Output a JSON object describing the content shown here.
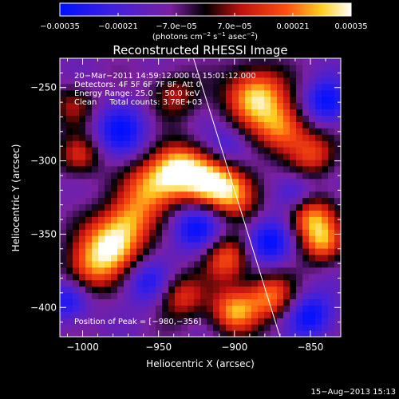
{
  "chart_data": {
    "type": "heatmap",
    "title": "Reconstructed RHESSI Image",
    "xlabel": "Heliocentric X (arcsec)",
    "ylabel": "Heliocentric Y (arcsec)",
    "xlim": [
      -1015,
      -830
    ],
    "ylim": [
      -420,
      -230
    ],
    "xticks": [
      -1000,
      -950,
      -900,
      -850
    ],
    "xtick_labels": [
      "−1000",
      "−950",
      "−900",
      "−850"
    ],
    "yticks": [
      -250,
      -300,
      -350,
      -400
    ],
    "ytick_labels": [
      "−250",
      "−300",
      "−350",
      "−400"
    ],
    "colorbar": {
      "range": [
        -0.00035,
        0.00035
      ],
      "tick_values": [
        -0.00035,
        -0.00021,
        -7e-05,
        7e-05,
        0.00021,
        0.00035
      ],
      "tick_labels": [
        "−0.00035",
        "−0.00021",
        "−7.0e−05",
        "7.0e−05",
        "0.00021",
        "0.00035"
      ],
      "units_prefix": "(photons cm",
      "units_sup1": "−2",
      "units_mid": " s",
      "units_sup2": "−1",
      "units_mid2": " asec",
      "units_sup3": "−2",
      "units_suffix": ")",
      "colormap": "rainbow-blue-red-yellow-white"
    },
    "info_lines": [
      "20−Mar−2011 14:59:12.000 to 15:01:12.000",
      "Detectors: 4F 5F 6F 7F 8F, Att 0",
      "Energy Range: 25.0 − 50.0 keV",
      "Clean     Total counts: 3.78E+03"
    ],
    "peak_label": "Position of Peak = [−980,−356]",
    "peak_position": [
      -980,
      -356
    ],
    "limb_line": [
      [
        -927,
        -230
      ],
      [
        -870,
        -420
      ]
    ],
    "footer_date": "15−Aug−2013 15:13",
    "blobs": [
      {
        "x": -980,
        "y": -356,
        "a": 1.0,
        "s": 14
      },
      {
        "x": -996,
        "y": -374,
        "a": 0.55,
        "s": 12
      },
      {
        "x": -968,
        "y": -338,
        "a": 0.45,
        "s": 11
      },
      {
        "x": -955,
        "y": -318,
        "a": 0.72,
        "s": 13
      },
      {
        "x": -938,
        "y": -305,
        "a": 0.85,
        "s": 12
      },
      {
        "x": -918,
        "y": -314,
        "a": 0.78,
        "s": 13
      },
      {
        "x": -900,
        "y": -322,
        "a": 0.7,
        "s": 12
      },
      {
        "x": -886,
        "y": -256,
        "a": 0.95,
        "s": 14
      },
      {
        "x": -868,
        "y": -278,
        "a": 0.7,
        "s": 12
      },
      {
        "x": -848,
        "y": -296,
        "a": 0.55,
        "s": 11
      },
      {
        "x": -850,
        "y": -338,
        "a": 0.78,
        "s": 11
      },
      {
        "x": -842,
        "y": -356,
        "a": 0.65,
        "s": 10
      },
      {
        "x": -905,
        "y": -366,
        "a": 0.68,
        "s": 11
      },
      {
        "x": -935,
        "y": -392,
        "a": 0.55,
        "s": 11
      },
      {
        "x": -900,
        "y": -402,
        "a": 0.8,
        "s": 11
      },
      {
        "x": -876,
        "y": -392,
        "a": 0.7,
        "s": 11
      },
      {
        "x": -1002,
        "y": -296,
        "a": 0.55,
        "s": 10
      },
      {
        "x": -1006,
        "y": -262,
        "a": 0.4,
        "s": 10
      },
      {
        "x": -940,
        "y": -255,
        "a": 0.45,
        "s": 11
      },
      {
        "x": -925,
        "y": -345,
        "a": -0.55,
        "s": 12
      },
      {
        "x": -975,
        "y": -280,
        "a": -0.5,
        "s": 13
      },
      {
        "x": -958,
        "y": -382,
        "a": -0.45,
        "s": 11
      },
      {
        "x": -878,
        "y": -355,
        "a": -0.6,
        "s": 11
      },
      {
        "x": -860,
        "y": -322,
        "a": -0.4,
        "s": 10
      },
      {
        "x": -840,
        "y": -260,
        "a": -0.55,
        "s": 11
      },
      {
        "x": -850,
        "y": -405,
        "a": -0.55,
        "s": 11
      },
      {
        "x": -1010,
        "y": -395,
        "a": -0.45,
        "s": 10
      },
      {
        "x": -905,
        "y": -290,
        "a": -0.3,
        "s": 10
      }
    ]
  }
}
